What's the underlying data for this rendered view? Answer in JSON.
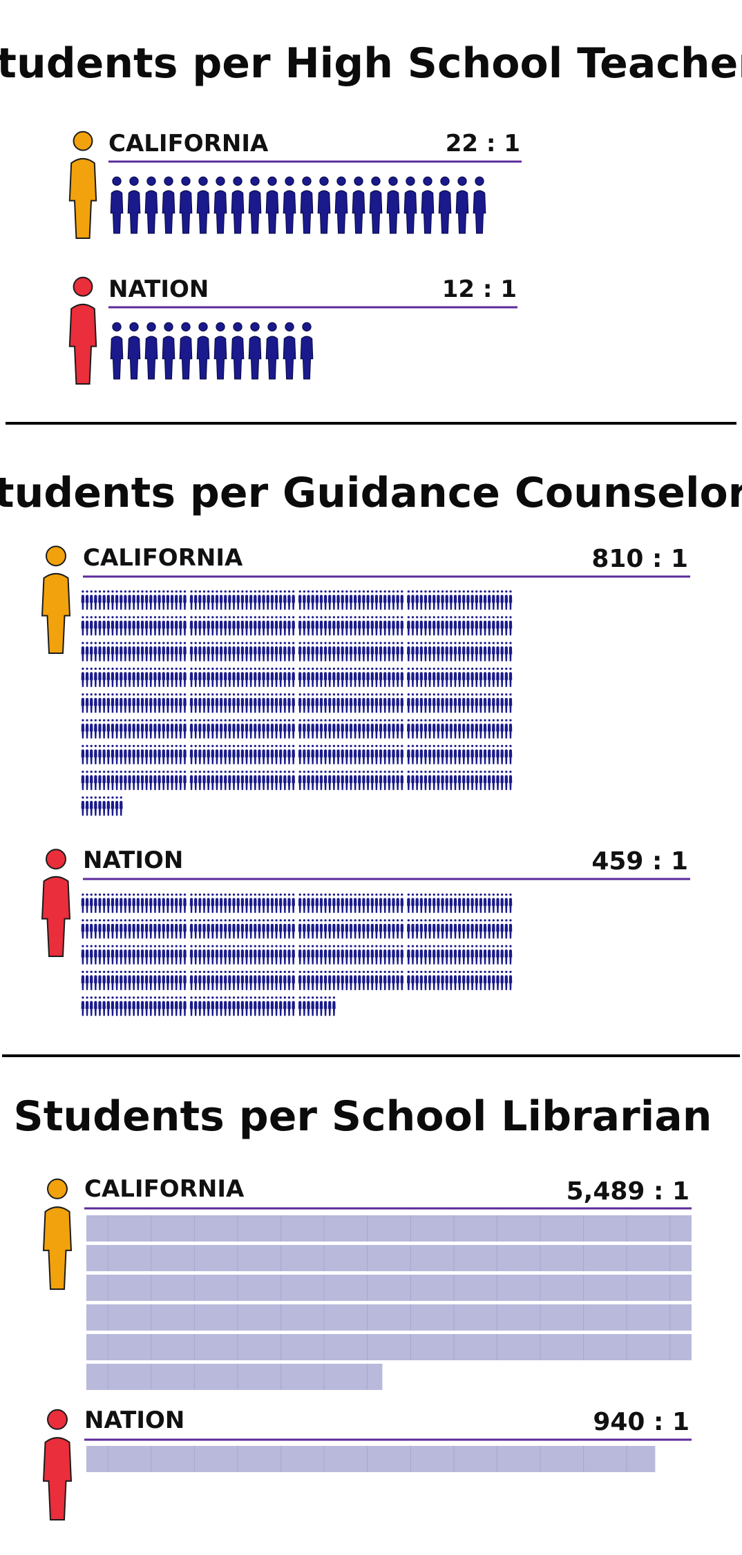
{
  "chart_data": [
    {
      "type": "pictogram",
      "title": "Students per High School Teacher",
      "series": [
        {
          "name": "CALIFORNIA",
          "value": 22,
          "ratio_label": "22 : 1",
          "color": "#f2a20c"
        },
        {
          "name": "NATION",
          "value": 12,
          "ratio_label": "12 : 1",
          "color": "#ea2e3b"
        }
      ]
    },
    {
      "type": "pictogram",
      "title": "Students per Guidance Counselor",
      "series": [
        {
          "name": "CALIFORNIA",
          "value": 810,
          "ratio_label": "810 : 1",
          "color": "#f2a20c"
        },
        {
          "name": "NATION",
          "value": 459,
          "ratio_label": "459 : 1",
          "color": "#ea2e3b"
        }
      ]
    },
    {
      "type": "pictogram",
      "title": "Students per School Librarian",
      "series": [
        {
          "name": "CALIFORNIA",
          "value": 5489,
          "ratio_label": "5,489 : 1",
          "color": "#f2a20c"
        },
        {
          "name": "NATION",
          "value": 940,
          "ratio_label": "940 : 1",
          "color": "#ea2e3b"
        }
      ]
    }
  ],
  "colors": {
    "student_icon": "#1a1a8c",
    "librarian_fill": "#b9b9dc",
    "rule_line": "#5b2a9a",
    "divider": "#000000"
  },
  "icons": {
    "california_marker": "person-icon",
    "nation_marker": "person-icon",
    "student_unit": "person-icon"
  }
}
